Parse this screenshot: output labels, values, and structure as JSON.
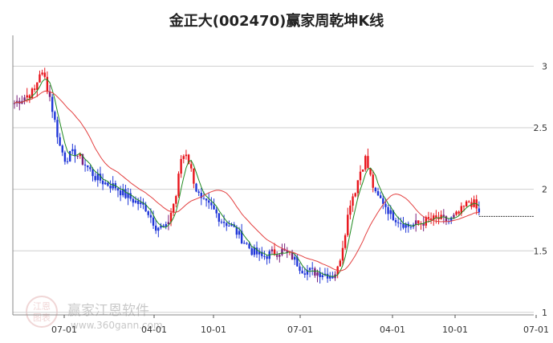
{
  "title": "金正大(002470)赢家周乾坤K线",
  "watermark": {
    "name": "赢家江恩软件",
    "url": "www.360gann.com",
    "logo": "江恩 图表"
  },
  "colors": {
    "up": "#e8141b",
    "down": "#1f36d8",
    "neutral": "#7a1f7a",
    "ma_short": "#1f8a1f",
    "ma_long": "#e34040",
    "grid": "#cfcfcf",
    "ref": "#333333"
  },
  "chart_data": {
    "type": "candlestick",
    "title": "金正大(002470)赢家周乾坤K线",
    "x_ticks": [
      "07-01",
      "04-01",
      "10-01",
      "07-01",
      "04-01",
      "10-01",
      "07-01"
    ],
    "y_ticks": [
      "3",
      "2.5",
      "2",
      "1.5",
      "1"
    ],
    "ylim": [
      0.98,
      3.25
    ],
    "reference_line": 1.78,
    "anchors": [
      [
        0,
        2.7
      ],
      [
        4,
        2.75
      ],
      [
        8,
        2.8
      ],
      [
        10,
        2.95
      ],
      [
        12,
        2.9
      ],
      [
        14,
        2.75
      ],
      [
        16,
        2.55
      ],
      [
        18,
        2.35
      ],
      [
        20,
        2.25
      ],
      [
        24,
        2.3
      ],
      [
        28,
        2.2
      ],
      [
        32,
        2.1
      ],
      [
        36,
        2.05
      ],
      [
        40,
        2.02
      ],
      [
        44,
        1.95
      ],
      [
        48,
        1.9
      ],
      [
        52,
        1.85
      ],
      [
        56,
        1.7
      ],
      [
        60,
        1.68
      ],
      [
        64,
        1.95
      ],
      [
        66,
        2.25
      ],
      [
        68,
        2.3
      ],
      [
        70,
        2.15
      ],
      [
        72,
        2.0
      ],
      [
        74,
        1.9
      ],
      [
        78,
        1.85
      ],
      [
        82,
        1.75
      ],
      [
        86,
        1.7
      ],
      [
        90,
        1.6
      ],
      [
        94,
        1.5
      ],
      [
        98,
        1.45
      ],
      [
        102,
        1.48
      ],
      [
        106,
        1.5
      ],
      [
        110,
        1.45
      ],
      [
        114,
        1.35
      ],
      [
        118,
        1.33
      ],
      [
        122,
        1.32
      ],
      [
        126,
        1.3
      ],
      [
        128,
        1.35
      ],
      [
        130,
        1.55
      ],
      [
        133,
        1.9
      ],
      [
        135,
        2.0
      ],
      [
        137,
        2.15
      ],
      [
        139,
        2.25
      ],
      [
        141,
        2.1
      ],
      [
        143,
        1.95
      ],
      [
        146,
        1.9
      ],
      [
        149,
        1.8
      ],
      [
        152,
        1.75
      ],
      [
        156,
        1.7
      ],
      [
        160,
        1.72
      ],
      [
        164,
        1.75
      ],
      [
        168,
        1.76
      ],
      [
        172,
        1.74
      ],
      [
        176,
        1.8
      ],
      [
        180,
        1.9
      ],
      [
        182,
        1.88
      ],
      [
        184,
        1.8
      ]
    ],
    "n_weeks": 185,
    "bar_colors_sample": "blue during declines, red during rallies, purple near flat"
  }
}
